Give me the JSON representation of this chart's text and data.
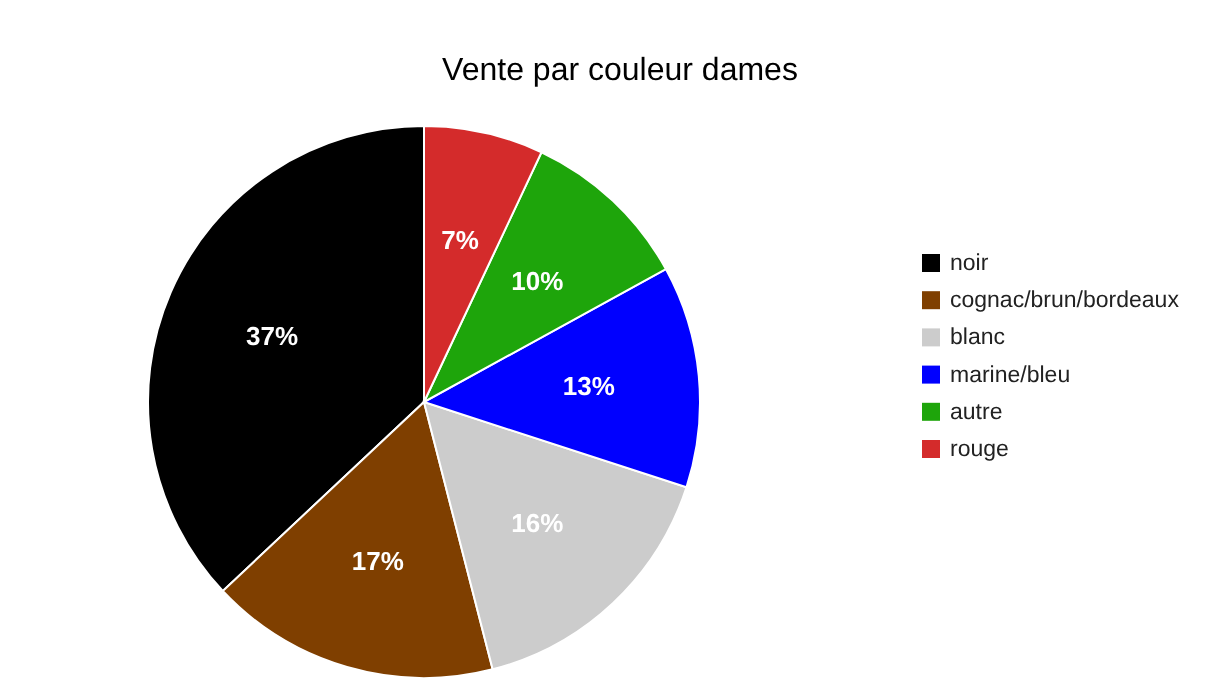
{
  "chart_data": {
    "type": "pie",
    "title": "Vente par couleur dames",
    "categories": [
      "noir",
      "cognac/brun/bordeaux",
      "blanc",
      "marine/bleu",
      "autre",
      "rouge"
    ],
    "values": [
      37,
      17,
      16,
      13,
      10,
      7
    ],
    "colors": [
      "#000000",
      "#7f3f00",
      "#cccccc",
      "#0000ff",
      "#1ea50b",
      "#d42b2b"
    ],
    "value_labels": [
      "37%",
      "17%",
      "16%",
      "13%",
      "10%",
      "7%"
    ],
    "legend": "right"
  }
}
